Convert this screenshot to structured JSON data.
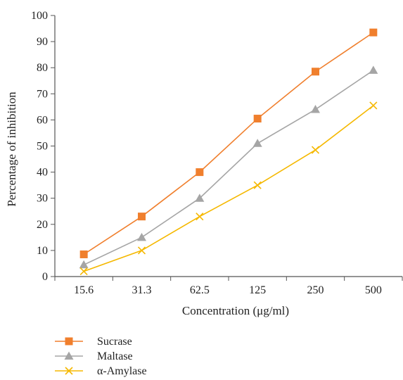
{
  "chart_data": {
    "type": "line",
    "categories": [
      "15.6",
      "31.3",
      "62.5",
      "125",
      "250",
      "500"
    ],
    "series": [
      {
        "name": "Sucrase",
        "values": [
          8.5,
          23,
          40,
          60.5,
          78.5,
          93.5
        ],
        "color": "#f07f2d",
        "marker": "square"
      },
      {
        "name": "Maltase",
        "values": [
          4.5,
          15,
          30,
          51,
          64,
          79
        ],
        "color": "#a5a5a5",
        "marker": "triangle"
      },
      {
        "name": "α-Amylase",
        "values": [
          2,
          10,
          23,
          35,
          48.5,
          65.5
        ],
        "color": "#f5b800",
        "marker": "x"
      }
    ],
    "xlabel": "Concentration (μg/ml)",
    "ylabel": "Percentage of inhibition",
    "ylim": [
      0,
      100
    ],
    "yticks": [
      0,
      10,
      20,
      30,
      40,
      50,
      60,
      70,
      80,
      90,
      100
    ],
    "grid": false,
    "legend_position": "bottom-left"
  }
}
